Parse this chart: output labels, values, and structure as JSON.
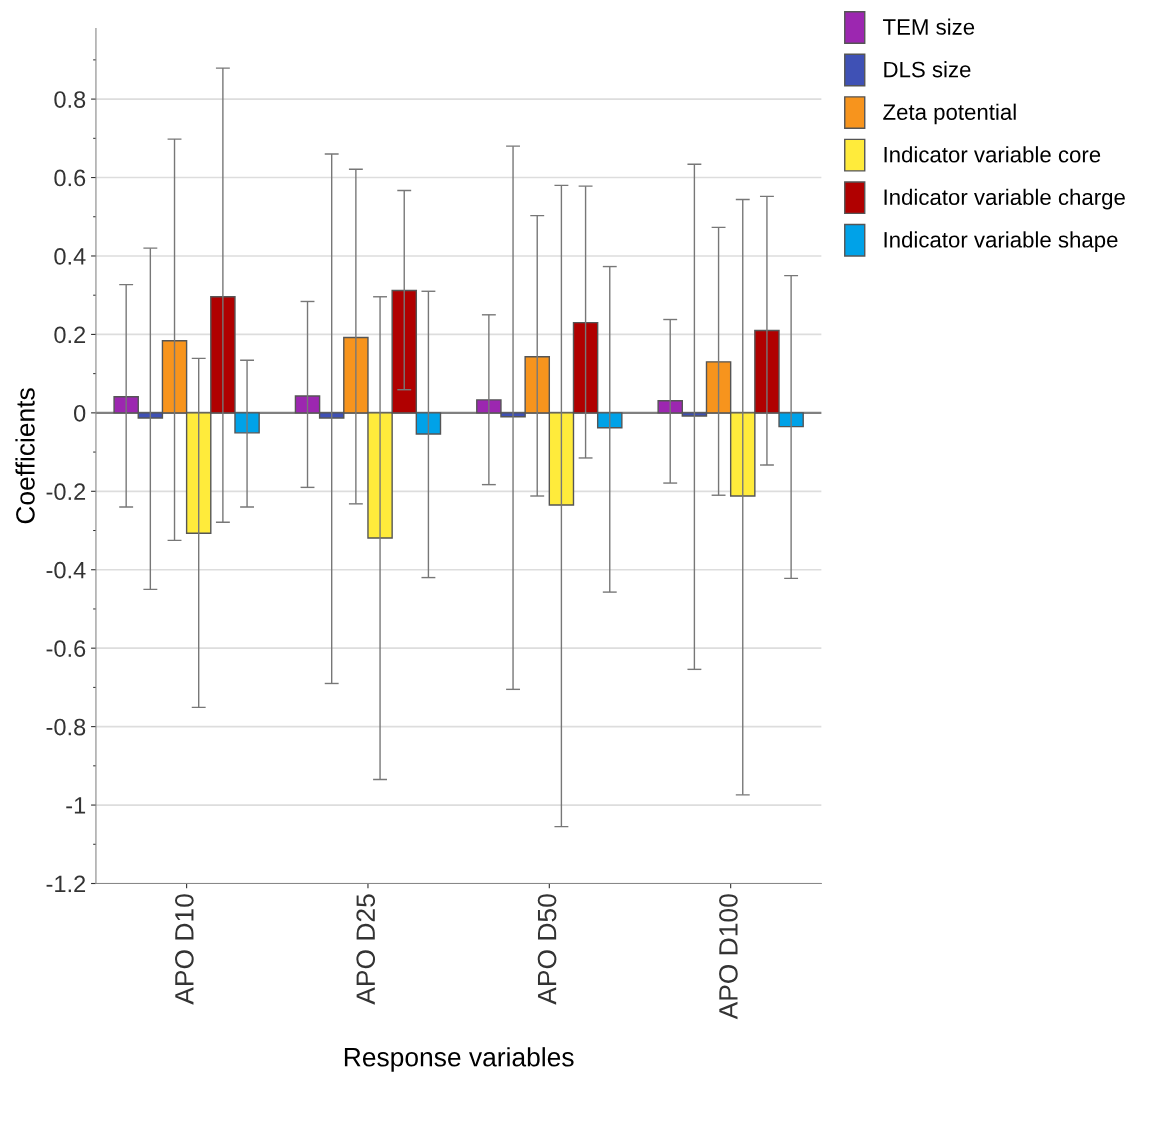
{
  "chart_data": {
    "type": "bar",
    "xlabel": "Response variables",
    "ylabel": "Coefficients",
    "categories": [
      "APO D10",
      "APO D25",
      "APO D50",
      "APO D100"
    ],
    "series": [
      {
        "name": "TEM size",
        "color": "#9c27b0",
        "values": [
          0.041,
          0.043,
          0.033,
          0.031
        ],
        "errors": [
          [
            -0.24,
            0.327
          ],
          [
            -0.19,
            0.284
          ],
          [
            -0.183,
            0.25
          ],
          [
            -0.179,
            0.238
          ]
        ]
      },
      {
        "name": "DLS size",
        "color": "#3f51b5",
        "values": [
          -0.013,
          -0.013,
          -0.01,
          -0.008
        ],
        "errors": [
          [
            -0.45,
            0.42
          ],
          [
            -0.69,
            0.66
          ],
          [
            -0.705,
            0.68
          ],
          [
            -0.654,
            0.634
          ]
        ]
      },
      {
        "name": "Zeta potential",
        "color": "#f7941d",
        "values": [
          0.184,
          0.192,
          0.143,
          0.13
        ],
        "errors": [
          [
            -0.325,
            0.698
          ],
          [
            -0.232,
            0.621
          ],
          [
            -0.212,
            0.503
          ],
          [
            -0.21,
            0.473
          ]
        ]
      },
      {
        "name": "Indicator variable core",
        "color": "#ffeb3b",
        "values": [
          -0.307,
          -0.319,
          -0.235,
          -0.212
        ],
        "errors": [
          [
            -0.751,
            0.139
          ],
          [
            -0.935,
            0.296
          ],
          [
            -1.055,
            0.58
          ],
          [
            -0.974,
            0.544
          ]
        ]
      },
      {
        "name": "Indicator variable charge",
        "color": "#b00000",
        "values": [
          0.296,
          0.312,
          0.23,
          0.21
        ],
        "errors": [
          [
            -0.279,
            0.879
          ],
          [
            0.059,
            0.567
          ],
          [
            -0.115,
            0.578
          ],
          [
            -0.133,
            0.552
          ]
        ]
      },
      {
        "name": "Indicator variable shape",
        "color": "#00a2e8",
        "values": [
          -0.051,
          -0.054,
          -0.038,
          -0.035
        ],
        "errors": [
          [
            -0.24,
            0.134
          ],
          [
            -0.42,
            0.31
          ],
          [
            -0.457,
            0.373
          ],
          [
            -0.422,
            0.35
          ]
        ]
      }
    ],
    "ylim": [
      -1.2,
      0.98
    ],
    "yticks": [
      -1.2,
      -1,
      -0.8,
      -0.6,
      -0.4,
      -0.2,
      0,
      0.2,
      0.4,
      0.6,
      0.8
    ],
    "ref_lines": [
      {
        "axis": "y",
        "value": 0,
        "color": "#808080"
      }
    ],
    "grid": "y",
    "legend": "top right"
  }
}
